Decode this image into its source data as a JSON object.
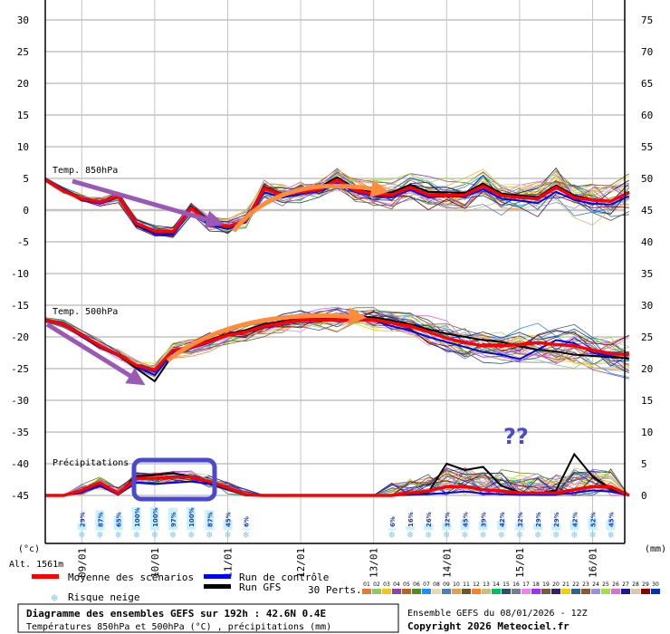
{
  "chart_data": {
    "type": "line",
    "title": "Diagramme des ensembles GEFS sur 192h : 42.6N 0.4E",
    "subtitle": "Températures 850hPa et 500hPa (°C) , précipitations (mm)",
    "run_label": "Ensemble GEFS du 08/01/2026 - 12Z",
    "copyright": "Copyright 2026 Meteociel.fr",
    "altitude": "Alt. 1561m",
    "left_unit": "(°c)",
    "right_unit": "(mm)",
    "x_step_hours": 6,
    "x_start": "08/01 12Z",
    "date_labels": [
      "09/01",
      "10/01",
      "11/01",
      "12/01",
      "13/01",
      "14/01",
      "15/01",
      "16/01"
    ],
    "left_ticks": [
      30,
      25,
      20,
      15,
      10,
      5,
      0,
      -5,
      -10,
      -15,
      -20,
      -25,
      -30,
      -35,
      -40,
      -45
    ],
    "right_ticks": [
      75,
      70,
      65,
      60,
      55,
      50,
      45,
      40,
      35,
      30,
      25,
      20,
      15,
      10,
      5,
      0
    ],
    "ylim_left": [
      -45,
      30
    ],
    "ylim_right_mm": [
      0,
      75
    ],
    "grid": true,
    "panels": {
      "t850": {
        "label": "Temp. 850hPa",
        "mean": [
          4.8,
          3.0,
          1.8,
          1.3,
          2.2,
          -2.1,
          -3.3,
          -3.4,
          0.3,
          -2.0,
          -2.6,
          -1.6,
          3.4,
          2.4,
          2.9,
          3.2,
          4.8,
          3.1,
          2.5,
          2.4,
          3.6,
          2.4,
          2.3,
          2.4,
          3.8,
          2.3,
          2.0,
          1.8,
          3.6,
          2.0,
          1.6,
          1.4,
          2.8
        ],
        "control": [
          4.8,
          3.1,
          1.6,
          1.0,
          2.0,
          -2.5,
          -3.8,
          -3.9,
          0.2,
          -2.3,
          -3.0,
          -1.9,
          2.8,
          2.0,
          2.5,
          3.0,
          4.3,
          2.9,
          2.2,
          2.0,
          3.2,
          2.0,
          2.2,
          2.1,
          3.3,
          1.8,
          1.5,
          1.1,
          2.9,
          1.6,
          1.0,
          0.9,
          2.2
        ],
        "gfs": [
          4.9,
          3.2,
          1.9,
          1.4,
          2.1,
          -2.3,
          -3.5,
          -3.6,
          0.6,
          -1.9,
          -2.8,
          -1.5,
          3.6,
          2.6,
          3.1,
          3.6,
          5.2,
          3.4,
          2.9,
          2.8,
          4.0,
          2.9,
          2.8,
          2.7,
          4.2,
          2.6,
          2.3,
          2.0,
          3.9,
          2.3,
          1.7,
          1.3,
          2.9
        ]
      },
      "t500": {
        "label": "Temp. 500hPa",
        "mean": [
          -17.3,
          -18.0,
          -19.7,
          -21.4,
          -22.8,
          -24.5,
          -25.2,
          -22.1,
          -21.6,
          -20.7,
          -19.7,
          -19.2,
          -18.3,
          -17.8,
          -17.3,
          -17.3,
          -17.3,
          -17.3,
          -17.3,
          -17.8,
          -18.3,
          -19.2,
          -20.2,
          -20.9,
          -21.4,
          -21.4,
          -21.2,
          -20.9,
          -21.2,
          -21.4,
          -22.1,
          -22.6,
          -22.8
        ],
        "control": [
          -17.3,
          -18.1,
          -19.9,
          -21.6,
          -23.0,
          -24.8,
          -26.0,
          -22.5,
          -21.8,
          -20.9,
          -19.8,
          -19.3,
          -18.5,
          -17.9,
          -17.5,
          -17.4,
          -17.2,
          -17.0,
          -17.4,
          -18.3,
          -19.0,
          -20.0,
          -20.8,
          -21.6,
          -22.4,
          -22.8,
          -23.5,
          -22.0,
          -20.5,
          -21.0,
          -22.5,
          -23.0,
          -23.5
        ],
        "gfs": [
          -17.2,
          -17.9,
          -19.6,
          -21.3,
          -22.9,
          -25.0,
          -27.0,
          -22.8,
          -21.4,
          -20.5,
          -19.5,
          -18.9,
          -18.0,
          -17.5,
          -17.1,
          -17.0,
          -16.9,
          -16.8,
          -16.9,
          -17.4,
          -18.0,
          -18.8,
          -19.5,
          -20.0,
          -20.5,
          -20.8,
          -21.5,
          -22.0,
          -22.3,
          -22.8,
          -23.0,
          -23.2,
          -23.4
        ]
      },
      "precip": {
        "label": "Précipitations",
        "unit": "mm",
        "mean": [
          0,
          0,
          0.8,
          2.0,
          0.3,
          2.7,
          2.7,
          2.9,
          2.9,
          2.2,
          1.2,
          0.1,
          0,
          0,
          0,
          0,
          0,
          0,
          0,
          0,
          0.4,
          0.7,
          1.4,
          1.4,
          0.9,
          0.7,
          0.4,
          0.4,
          0.4,
          0.9,
          1.4,
          1.4,
          0
        ],
        "control": [
          0,
          0,
          0.5,
          1.5,
          0.2,
          2.0,
          1.8,
          2.0,
          2.2,
          1.8,
          0.9,
          0,
          0,
          0,
          0,
          0,
          0,
          0,
          0,
          0,
          0.1,
          0.2,
          0.4,
          0.6,
          0.3,
          0.2,
          0.1,
          0.1,
          0.2,
          0.4,
          0.8,
          0.6,
          0
        ],
        "gfs": [
          0,
          0,
          0.7,
          1.8,
          0.4,
          3.0,
          3.2,
          3.5,
          3.0,
          2.0,
          1.0,
          0,
          0,
          0,
          0,
          0,
          0,
          0,
          0,
          0,
          0.2,
          0.5,
          5.0,
          4.0,
          4.5,
          1.5,
          0.5,
          0.3,
          0.8,
          6.5,
          3.0,
          1.0,
          0
        ]
      }
    },
    "snow_risk": [
      {
        "step": 2,
        "pct": "29%",
        "value": 29
      },
      {
        "step": 3,
        "pct": "87%",
        "value": 87
      },
      {
        "step": 4,
        "pct": "65%",
        "value": 65
      },
      {
        "step": 5,
        "pct": "100%",
        "value": 100
      },
      {
        "step": 6,
        "pct": "100%",
        "value": 100
      },
      {
        "step": 7,
        "pct": "97%",
        "value": 97
      },
      {
        "step": 8,
        "pct": "100%",
        "value": 100
      },
      {
        "step": 9,
        "pct": "87%",
        "value": 87
      },
      {
        "step": 10,
        "pct": "45%",
        "value": 45
      },
      {
        "step": 11,
        "pct": "6%",
        "value": 6
      },
      {
        "step": 19,
        "pct": "6%",
        "value": 6
      },
      {
        "step": 20,
        "pct": "16%",
        "value": 16
      },
      {
        "step": 21,
        "pct": "26%",
        "value": 26
      },
      {
        "step": 22,
        "pct": "32%",
        "value": 32
      },
      {
        "step": 23,
        "pct": "45%",
        "value": 45
      },
      {
        "step": 24,
        "pct": "39%",
        "value": 39
      },
      {
        "step": 25,
        "pct": "42%",
        "value": 42
      },
      {
        "step": 26,
        "pct": "32%",
        "value": 32
      },
      {
        "step": 27,
        "pct": "29%",
        "value": 29
      },
      {
        "step": 28,
        "pct": "29%",
        "value": 29
      },
      {
        "step": 29,
        "pct": "42%",
        "value": 42
      },
      {
        "step": 30,
        "pct": "52%",
        "value": 52
      },
      {
        "step": 31,
        "pct": "45%",
        "value": 45
      }
    ],
    "legend": {
      "mean": "Moyenne des scénarios",
      "control": "Run de contrôle",
      "gfs": "Run GFS",
      "snow": "Risque neige",
      "perts_label": "30 Perts.",
      "perts": [
        "01",
        "02",
        "03",
        "04",
        "05",
        "06",
        "07",
        "08",
        "09",
        "10",
        "11",
        "12",
        "13",
        "14",
        "15",
        "16",
        "17",
        "18",
        "19",
        "20",
        "21",
        "22",
        "23",
        "24",
        "25",
        "26",
        "27",
        "28",
        "29",
        "30"
      ]
    },
    "annotation_text": "??"
  },
  "colors": {
    "mean": "#ff0000",
    "control": "#0000ff",
    "gfs": "#000000",
    "grid": "#c4c4c4",
    "snow": "#7cc8ee",
    "snow_bar": "#c8f2ff",
    "annot_purple": "#9b59b6",
    "annot_orange": "#ff8c3a",
    "annot_blue": "#4a4acc",
    "perts": [
      "#e07b39",
      "#8fc86a",
      "#f0c419",
      "#8e44ad",
      "#b5651d",
      "#5a8a1a",
      "#1e90ff",
      "#e8d8b0",
      "#4682b4",
      "#e0a050",
      "#6b5a2a",
      "#ff7f27",
      "#c8c080",
      "#00c060",
      "#2f4f6f",
      "#708090",
      "#ee82ee",
      "#9b30ff",
      "#7a5c3a",
      "#3a1a6a",
      "#f0d000",
      "#306090",
      "#8b5a2b",
      "#9b8fe0",
      "#a0e040",
      "#da70d6",
      "#1a1a8a",
      "#d8c8a8",
      "#8b0000",
      "#0030c0"
    ]
  }
}
